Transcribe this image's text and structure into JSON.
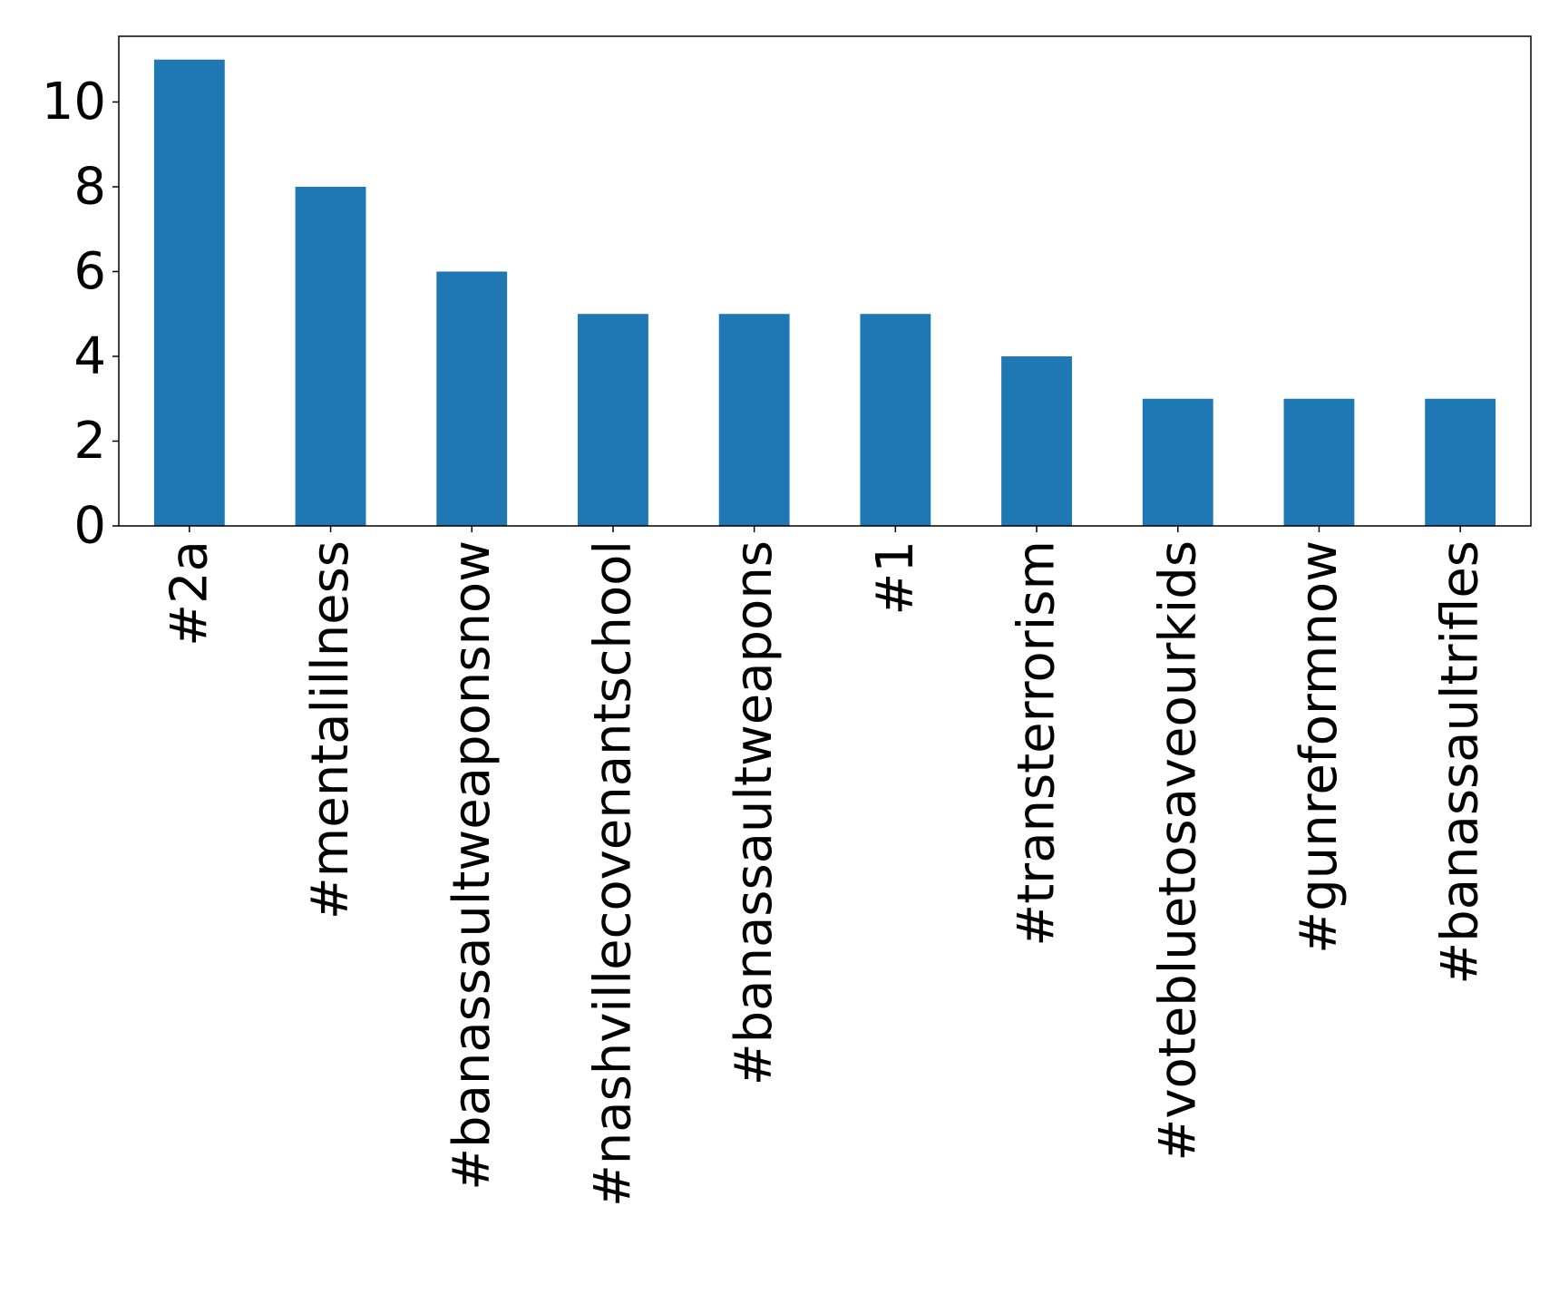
{
  "chart_data": {
    "type": "bar",
    "title": "",
    "xlabel": "",
    "ylabel": "",
    "categories": [
      "#2a",
      "#mentalillness",
      "#banassaultweaponsnow",
      "#nashvillecovenantschool",
      "#banassaultweapons",
      "#1",
      "#transterrorism",
      "#votebluetosaveourkids",
      "#gunreformnow",
      "#banassaultrifles"
    ],
    "values": [
      11,
      8,
      6,
      5,
      5,
      5,
      4,
      3,
      3,
      3
    ],
    "ylim": [
      0,
      11.55
    ],
    "yticks": [
      0,
      2,
      4,
      6,
      8,
      10
    ],
    "bar_color": "#1f77b4",
    "grid": false,
    "legend": "none"
  }
}
